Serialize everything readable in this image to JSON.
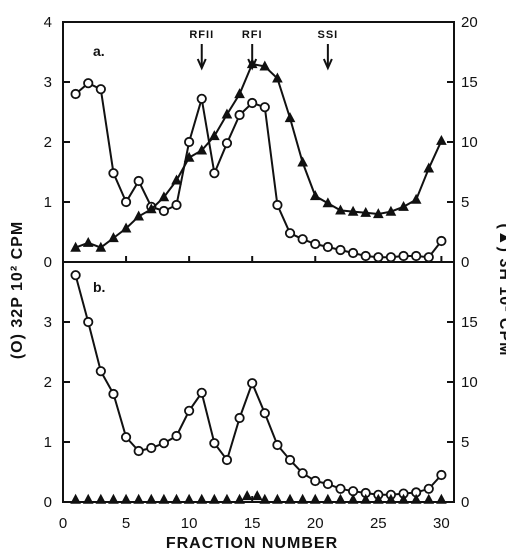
{
  "chart_data": [
    {
      "type": "line",
      "panel_label": "a.",
      "xlabel": "FRACTION NUMBER",
      "left_ylabel": "(O) 32P 10² CPM",
      "right_ylabel": "(▲) 3H 10² CPM",
      "xlim": [
        0,
        31
      ],
      "x_ticks": [
        0,
        5,
        10,
        15,
        20,
        25,
        30
      ],
      "ylim_left": [
        0,
        4
      ],
      "ylim_right": [
        0,
        20
      ],
      "left_ticks": [
        0,
        1,
        2,
        3,
        4
      ],
      "right_ticks": [
        0,
        5,
        10,
        15,
        20
      ],
      "annotations": [
        {
          "text": "RFII",
          "x": 11
        },
        {
          "text": "RFI",
          "x": 15
        },
        {
          "text": "SSI",
          "x": 21
        }
      ],
      "series": [
        {
          "marker": "open-circle",
          "axis": "left",
          "x": [
            1,
            2,
            3,
            4,
            5,
            6,
            7,
            8,
            9,
            10,
            11,
            12,
            13,
            14,
            15,
            16,
            17,
            18,
            19,
            20,
            21,
            22,
            23,
            24,
            25,
            26,
            27,
            28,
            29,
            30
          ],
          "y": [
            2.8,
            2.98,
            2.88,
            1.48,
            1.0,
            1.35,
            0.92,
            0.85,
            0.95,
            2.0,
            2.72,
            1.48,
            1.98,
            2.45,
            2.65,
            2.58,
            0.95,
            0.48,
            0.38,
            0.3,
            0.25,
            0.2,
            0.15,
            0.1,
            0.08,
            0.08,
            0.1,
            0.1,
            0.08,
            0.35
          ]
        },
        {
          "marker": "filled-triangle",
          "axis": "right",
          "x": [
            1,
            2,
            3,
            4,
            5,
            6,
            7,
            8,
            9,
            10,
            11,
            12,
            13,
            14,
            15,
            16,
            17,
            18,
            19,
            20,
            21,
            22,
            23,
            24,
            25,
            26,
            27,
            28,
            29,
            30
          ],
          "y": [
            1.2,
            1.6,
            1.2,
            2.0,
            2.8,
            3.8,
            4.4,
            5.4,
            6.8,
            8.7,
            9.3,
            10.5,
            12.3,
            14.0,
            16.5,
            16.3,
            15.3,
            12.0,
            8.3,
            5.5,
            4.9,
            4.3,
            4.2,
            4.1,
            4.0,
            4.2,
            4.6,
            5.2,
            7.8,
            10.1
          ]
        }
      ]
    },
    {
      "type": "line",
      "panel_label": "b.",
      "xlim": [
        0,
        31
      ],
      "x_ticks": [
        0,
        5,
        10,
        15,
        20,
        25,
        30
      ],
      "ylim_left": [
        0,
        4
      ],
      "ylim_right": [
        0,
        20
      ],
      "left_ticks": [
        0,
        1,
        2,
        3
      ],
      "right_ticks": [
        0,
        5,
        10,
        15
      ],
      "series": [
        {
          "marker": "open-circle",
          "axis": "left",
          "x": [
            1,
            2,
            3,
            4,
            5,
            6,
            7,
            8,
            9,
            10,
            11,
            12,
            13,
            14,
            15,
            16,
            17,
            18,
            19,
            20,
            21,
            22,
            23,
            24,
            25,
            26,
            27,
            28,
            29,
            30
          ],
          "y": [
            3.78,
            3.0,
            2.18,
            1.8,
            1.08,
            0.85,
            0.9,
            0.98,
            1.1,
            1.52,
            1.82,
            0.98,
            0.7,
            1.4,
            1.98,
            1.48,
            0.95,
            0.7,
            0.48,
            0.35,
            0.3,
            0.22,
            0.18,
            0.15,
            0.12,
            0.12,
            0.14,
            0.16,
            0.22,
            0.45
          ]
        },
        {
          "marker": "filled-triangle",
          "axis": "right",
          "x": [
            1,
            2,
            3,
            4,
            5,
            6,
            7,
            8,
            9,
            10,
            11,
            12,
            13,
            14,
            14.6,
            15.4,
            16,
            17,
            18,
            19,
            20,
            21,
            22,
            23,
            24,
            25,
            26,
            27,
            28,
            29,
            30
          ],
          "y": [
            0.2,
            0.2,
            0.2,
            0.2,
            0.2,
            0.2,
            0.2,
            0.2,
            0.2,
            0.2,
            0.2,
            0.2,
            0.2,
            0.2,
            0.5,
            0.5,
            0.2,
            0.2,
            0.2,
            0.2,
            0.2,
            0.2,
            0.2,
            0.2,
            0.2,
            0.2,
            0.2,
            0.2,
            0.2,
            0.2,
            0.2
          ]
        }
      ]
    }
  ]
}
